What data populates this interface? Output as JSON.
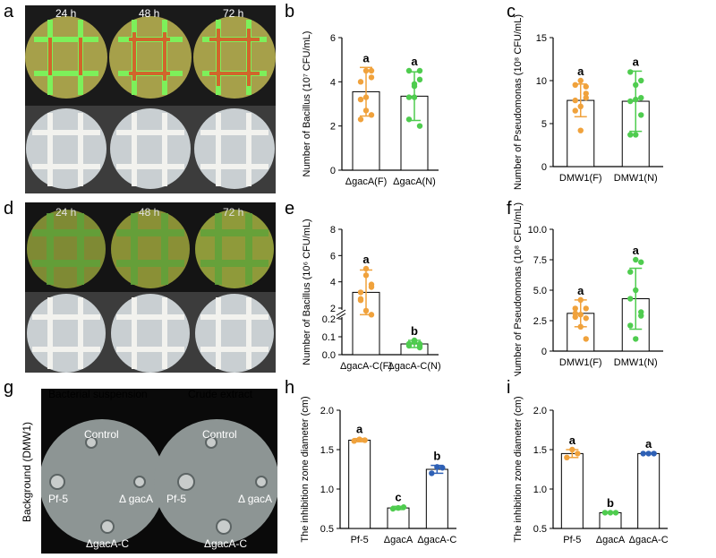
{
  "panel_labels": {
    "a": "a",
    "b": "b",
    "c": "c",
    "d": "d",
    "e": "e",
    "f": "f",
    "g": "g",
    "h": "h",
    "i": "i"
  },
  "time_labels": [
    "24 h",
    "48 h",
    "72 h"
  ],
  "panel_g": {
    "y_label": "Background (DMW1)",
    "left_title": "Bacterial suspension",
    "right_title": "Crude  extract",
    "control": "Control",
    "pf5": "Pf-5",
    "gacA": "Δ gacA",
    "gacAC": "ΔgacA-C"
  },
  "colors": {
    "orange": "#f0a23c",
    "green": "#4fcc4f",
    "blue": "#2e60b5",
    "fluor": "#7df05a"
  },
  "chart_data": [
    {
      "id": "b",
      "type": "bar",
      "ylabel": "Number of Bacillus (10⁷ CFU/mL)",
      "ylim": [
        0,
        6
      ],
      "yticks": [
        "0",
        "2",
        "4",
        "6"
      ],
      "ytick_values": [
        0,
        2,
        4,
        6
      ],
      "categories": [
        "ΔgacA(F)",
        "ΔgacA(N)"
      ],
      "series": [
        {
          "name": "mean",
          "values": [
            3.55,
            3.35
          ],
          "errors": [
            1.1,
            1.1
          ]
        }
      ],
      "points": [
        [
          3.2,
          4.5,
          4.2,
          4.0,
          2.7,
          2.5,
          2.3,
          3.3,
          4.5
        ],
        [
          3.3,
          3.9,
          4.1,
          4.5,
          3.8,
          2.0,
          2.3,
          3.3,
          4.5
        ]
      ],
      "point_colors": [
        "#f0a23c",
        "#4fcc4f"
      ],
      "sig": [
        "a",
        "a"
      ]
    },
    {
      "id": "c",
      "type": "bar",
      "ylabel": "Number of Pseudomonas (10⁸ CFU/mL)",
      "ylim": [
        0,
        15
      ],
      "yticks": [
        "0",
        "5",
        "10",
        "15"
      ],
      "ytick_values": [
        0,
        5,
        10,
        15
      ],
      "categories": [
        "DMW1(F)",
        "DMW1(N)"
      ],
      "series": [
        {
          "name": "mean",
          "values": [
            7.7,
            7.6
          ],
          "errors": [
            1.9,
            3.5
          ]
        }
      ],
      "points": [
        [
          7.7,
          7.0,
          8.5,
          9.5,
          10.0,
          9.3,
          6.5,
          4.2,
          8.0
        ],
        [
          7.6,
          7.8,
          10.0,
          11.0,
          9.5,
          6.0,
          3.7,
          3.7,
          8.0
        ]
      ],
      "point_colors": [
        "#f0a23c",
        "#4fcc4f"
      ],
      "sig": [
        "a",
        "a"
      ]
    },
    {
      "id": "e",
      "type": "bar",
      "broken_axis": true,
      "ylabel": "Number of Bacillus (10⁶ CFU/mL)",
      "yticks": [
        "0.0",
        "0.1",
        "0.2",
        "2",
        "4",
        "6",
        "8"
      ],
      "ytick_values": [
        0,
        0.1,
        0.2,
        2,
        4,
        6,
        8
      ],
      "categories": [
        "ΔgacA-C(F)",
        "ΔgacA-C(N)"
      ],
      "series": [
        {
          "name": "mean",
          "values": [
            3.2,
            0.06
          ],
          "errors": [
            1.7,
            0.02
          ]
        }
      ],
      "points": [
        [
          3.2,
          4.5,
          3.8,
          2.7,
          1.8,
          1.5,
          2.6,
          5.0,
          3.6
        ],
        [
          0.06,
          0.07,
          0.05,
          0.06,
          0.08,
          0.04,
          0.05,
          0.07,
          0.06
        ]
      ],
      "point_colors": [
        "#f0a23c",
        "#4fcc4f"
      ],
      "sig": [
        "a",
        "b"
      ]
    },
    {
      "id": "f",
      "type": "bar",
      "ylabel": "Number of Pseudomonas (10⁸ CFU/mL)",
      "ylim": [
        0,
        10
      ],
      "yticks": [
        "0",
        "2.5",
        "5.0",
        "7.5",
        "10.0"
      ],
      "ytick_values": [
        0,
        2.5,
        5,
        7.5,
        10
      ],
      "categories": [
        "DMW1(F)",
        "DMW1(N)"
      ],
      "series": [
        {
          "name": "mean",
          "values": [
            3.1,
            4.3
          ],
          "errors": [
            1.1,
            2.5
          ]
        }
      ],
      "points": [
        [
          3.1,
          4.2,
          3.5,
          2.8,
          2.0,
          1.0,
          3.5,
          3.0,
          2.7
        ],
        [
          4.3,
          7.5,
          7.3,
          6.5,
          5.0,
          3.2,
          2.1,
          1.0,
          2.9
        ]
      ],
      "point_colors": [
        "#f0a23c",
        "#4fcc4f"
      ],
      "sig": [
        "a",
        "a"
      ]
    },
    {
      "id": "h",
      "type": "bar",
      "ylabel": "The inhibition zone diameter (cm)",
      "ylim": [
        0.5,
        2.0
      ],
      "yticks": [
        "0.5",
        "1.0",
        "1.5",
        "2.0"
      ],
      "ytick_values": [
        0.5,
        1.0,
        1.5,
        2.0
      ],
      "categories": [
        "Pf-5",
        "ΔgacA",
        "ΔgacA-C"
      ],
      "series": [
        {
          "name": "mean",
          "values": [
            1.62,
            0.76,
            1.25
          ],
          "errors": [
            0.02,
            0.02,
            0.05
          ]
        }
      ],
      "points": [
        [
          1.61,
          1.63,
          1.62
        ],
        [
          0.75,
          0.76,
          0.77
        ],
        [
          1.2,
          1.28,
          1.27
        ]
      ],
      "point_colors": [
        "#f0a23c",
        "#4fcc4f",
        "#2e60b5"
      ],
      "sig": [
        "a",
        "c",
        "b"
      ]
    },
    {
      "id": "i",
      "type": "bar",
      "ylabel": "The inhibition zone diameter (cm)",
      "ylim": [
        0.5,
        2.0
      ],
      "yticks": [
        "0.5",
        "1.0",
        "1.5",
        "2.0"
      ],
      "ytick_values": [
        0.5,
        1.0,
        1.5,
        2.0
      ],
      "categories": [
        "Pf-5",
        "ΔgacA",
        "ΔgacA-C"
      ],
      "series": [
        {
          "name": "mean",
          "values": [
            1.45,
            0.7,
            1.45
          ],
          "errors": [
            0.05,
            0.005,
            0.005
          ]
        }
      ],
      "points": [
        [
          1.4,
          1.5,
          1.45
        ],
        [
          0.7,
          0.7,
          0.7
        ],
        [
          1.45,
          1.45,
          1.45
        ]
      ],
      "point_colors": [
        "#f0a23c",
        "#4fcc4f",
        "#2e60b5"
      ],
      "sig": [
        "a",
        "b",
        "a"
      ]
    }
  ]
}
